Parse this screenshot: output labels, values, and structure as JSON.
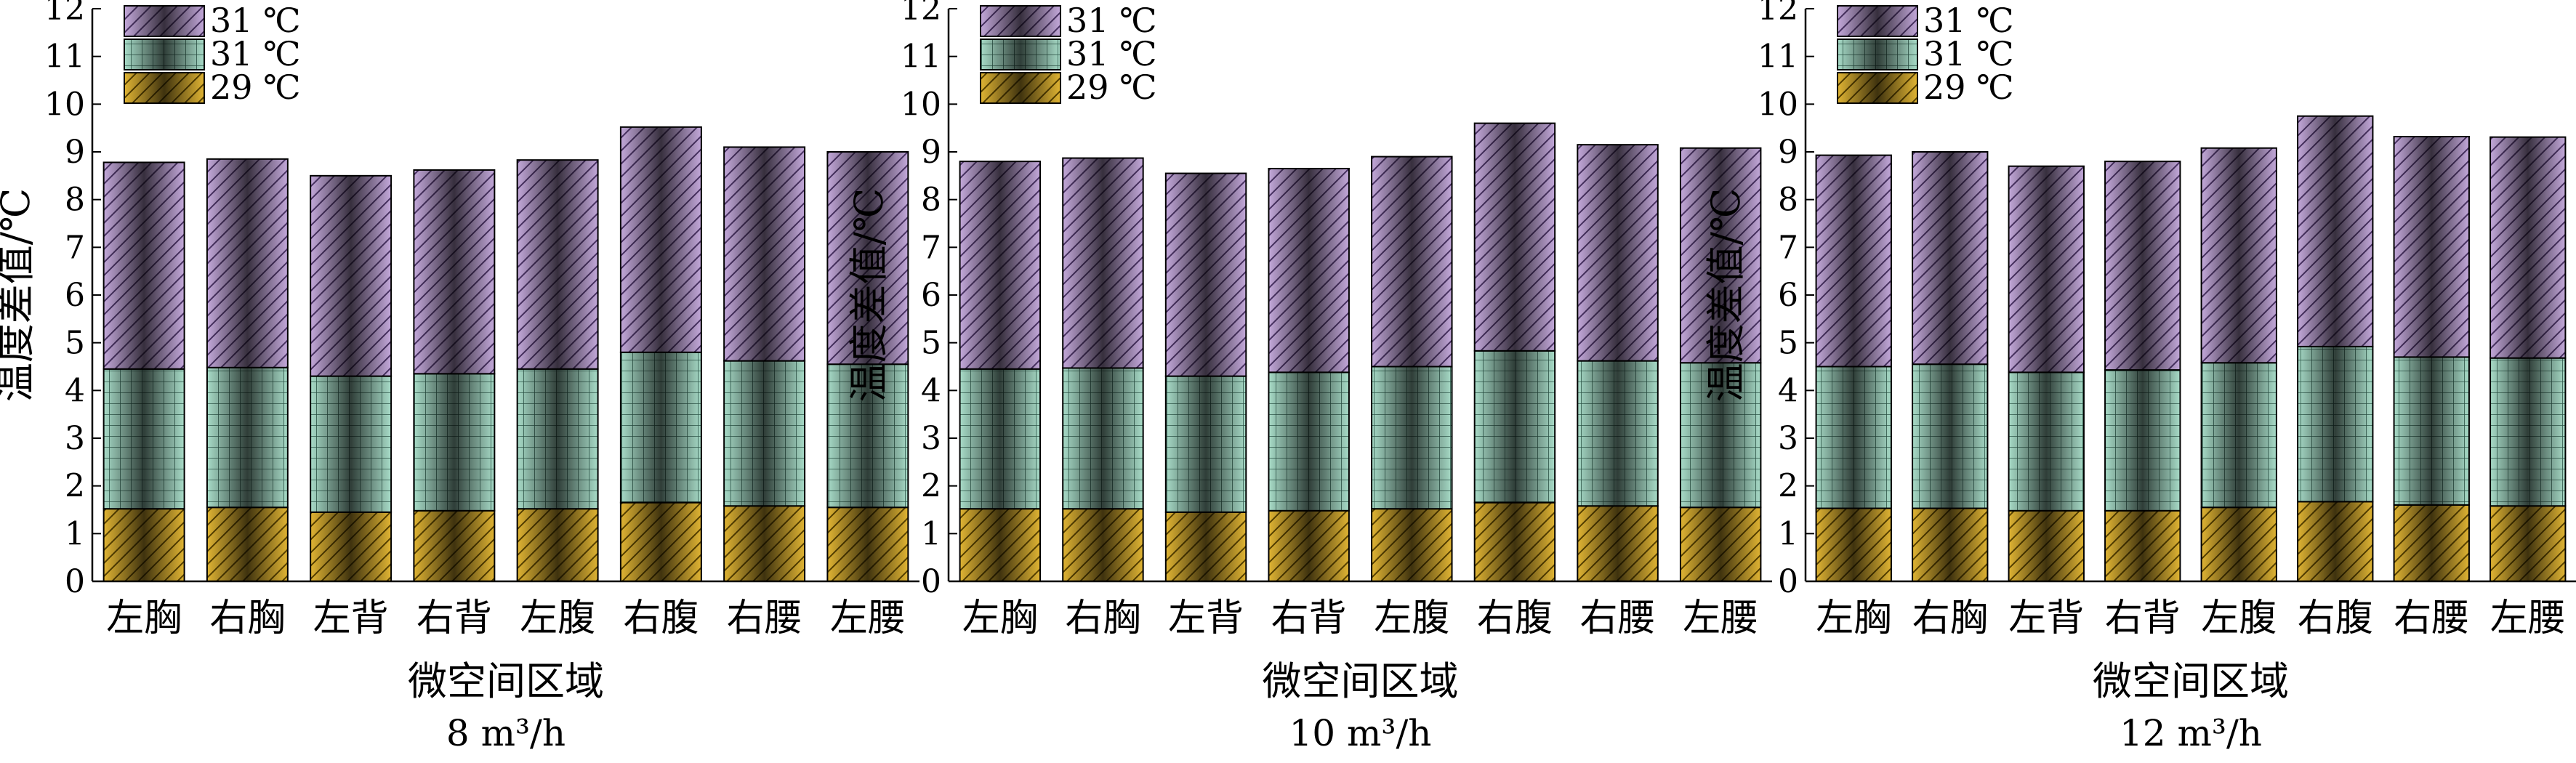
{
  "chart_data": [
    {
      "type": "bar",
      "stacked": true,
      "caption": "8 m³/h",
      "xlabel": "微空间区域",
      "ylabel": "温度差值/℃",
      "ylim": [
        0,
        12
      ],
      "yticks": [
        "0",
        "1",
        "2",
        "3",
        "4",
        "5",
        "6",
        "7",
        "8",
        "9",
        "10",
        "11",
        "12"
      ],
      "categories": [
        "左胸",
        "右胸",
        "左背",
        "右背",
        "左腹",
        "右腹",
        "右腰",
        "左腰"
      ],
      "series": [
        {
          "name": "29 ℃",
          "values": [
            1.52,
            1.55,
            1.45,
            1.48,
            1.52,
            1.65,
            1.58,
            1.55
          ]
        },
        {
          "name": "31 ℃",
          "values": [
            2.93,
            2.93,
            2.85,
            2.87,
            2.93,
            3.15,
            3.04,
            3.0
          ]
        },
        {
          "name": "31 ℃",
          "values": [
            4.33,
            4.37,
            4.2,
            4.27,
            4.38,
            4.72,
            4.48,
            4.45
          ]
        }
      ]
    },
    {
      "type": "bar",
      "stacked": true,
      "caption": "10 m³/h",
      "xlabel": "微空间区域",
      "ylabel": "温度差值/℃",
      "ylim": [
        0,
        12
      ],
      "yticks": [
        "0",
        "1",
        "2",
        "3",
        "4",
        "5",
        "6",
        "7",
        "8",
        "9",
        "10",
        "11",
        "12"
      ],
      "categories": [
        "左胸",
        "右胸",
        "左背",
        "右背",
        "左腹",
        "右腹",
        "右腰",
        "左腰"
      ],
      "series": [
        {
          "name": "29 ℃",
          "values": [
            1.52,
            1.52,
            1.45,
            1.48,
            1.52,
            1.65,
            1.58,
            1.55
          ]
        },
        {
          "name": "31 ℃",
          "values": [
            2.93,
            2.95,
            2.85,
            2.9,
            2.98,
            3.18,
            3.04,
            3.03
          ]
        },
        {
          "name": "31 ℃",
          "values": [
            4.35,
            4.4,
            4.25,
            4.27,
            4.4,
            4.77,
            4.53,
            4.5
          ]
        }
      ]
    },
    {
      "type": "bar",
      "stacked": true,
      "caption": "12 m³/h",
      "xlabel": "微空间区域",
      "ylabel": "温度差值/℃",
      "ylim": [
        0,
        12
      ],
      "yticks": [
        "0",
        "1",
        "2",
        "3",
        "4",
        "5",
        "6",
        "7",
        "8",
        "9",
        "10",
        "11",
        "12"
      ],
      "categories": [
        "左胸",
        "右胸",
        "左背",
        "右背",
        "左腹",
        "右腹",
        "右腰",
        "左腰"
      ],
      "series": [
        {
          "name": "29 ℃",
          "values": [
            1.53,
            1.53,
            1.48,
            1.48,
            1.55,
            1.67,
            1.6,
            1.58
          ]
        },
        {
          "name": "31 ℃",
          "values": [
            2.97,
            3.02,
            2.9,
            2.95,
            3.03,
            3.25,
            3.1,
            3.1
          ]
        },
        {
          "name": "31 ℃",
          "values": [
            4.43,
            4.45,
            4.32,
            4.37,
            4.5,
            4.83,
            4.62,
            4.63
          ]
        }
      ]
    }
  ],
  "style": {
    "colors": [
      "#e0b433",
      "#a8dcc8",
      "#c3a8da"
    ],
    "hatch": [
      "diagonal-down",
      "grid",
      "diagonal-up"
    ],
    "bar_shading": "dark-center-gradient"
  }
}
